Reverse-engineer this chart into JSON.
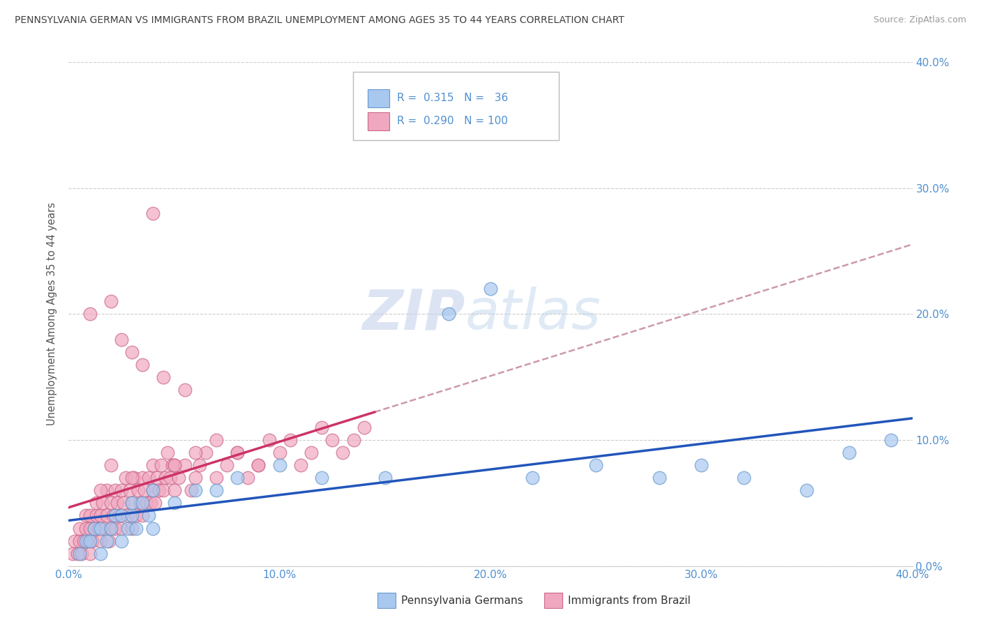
{
  "title": "PENNSYLVANIA GERMAN VS IMMIGRANTS FROM BRAZIL UNEMPLOYMENT AMONG AGES 35 TO 44 YEARS CORRELATION CHART",
  "source": "Source: ZipAtlas.com",
  "ylabel": "Unemployment Among Ages 35 to 44 years",
  "watermark_zip": "ZIP",
  "watermark_atlas": "atlas",
  "xlim": [
    0.0,
    0.4
  ],
  "ylim": [
    0.0,
    0.4
  ],
  "xticks": [
    0.0,
    0.1,
    0.2,
    0.3,
    0.4
  ],
  "yticks": [
    0.0,
    0.1,
    0.2,
    0.3,
    0.4
  ],
  "series1_name": "Pennsylvania Germans",
  "series2_name": "Immigrants from Brazil",
  "series1_color": "#a8c8f0",
  "series1_edge": "#6699cc",
  "series2_color": "#f0a8c0",
  "series2_edge": "#cc6688",
  "trend1_color": "#2255bb",
  "trend2_color": "#cc3366",
  "trend_dash_color": "#cc99aa",
  "title_color": "#404040",
  "axis_tick_color": "#5090d0",
  "ylabel_color": "#555555",
  "background_color": "#ffffff",
  "grid_color": "#cccccc",
  "legend_text_color": "#5090d0",
  "pa_german_x": [
    0.005,
    0.008,
    0.01,
    0.012,
    0.015,
    0.015,
    0.018,
    0.02,
    0.022,
    0.025,
    0.025,
    0.028,
    0.03,
    0.03,
    0.032,
    0.035,
    0.038,
    0.04,
    0.04,
    0.05,
    0.06,
    0.07,
    0.08,
    0.1,
    0.12,
    0.15,
    0.18,
    0.2,
    0.22,
    0.25,
    0.28,
    0.3,
    0.32,
    0.35,
    0.37,
    0.39
  ],
  "pa_german_y": [
    0.01,
    0.02,
    0.02,
    0.03,
    0.01,
    0.03,
    0.02,
    0.03,
    0.04,
    0.02,
    0.04,
    0.03,
    0.04,
    0.05,
    0.03,
    0.05,
    0.04,
    0.03,
    0.06,
    0.05,
    0.06,
    0.06,
    0.07,
    0.08,
    0.07,
    0.07,
    0.2,
    0.22,
    0.07,
    0.08,
    0.07,
    0.08,
    0.07,
    0.06,
    0.09,
    0.1
  ],
  "brazil_x": [
    0.002,
    0.003,
    0.004,
    0.005,
    0.005,
    0.006,
    0.007,
    0.008,
    0.008,
    0.009,
    0.01,
    0.01,
    0.01,
    0.011,
    0.012,
    0.013,
    0.013,
    0.014,
    0.015,
    0.015,
    0.016,
    0.017,
    0.018,
    0.018,
    0.019,
    0.02,
    0.02,
    0.021,
    0.022,
    0.022,
    0.023,
    0.024,
    0.025,
    0.025,
    0.026,
    0.027,
    0.028,
    0.029,
    0.03,
    0.03,
    0.031,
    0.032,
    0.033,
    0.034,
    0.035,
    0.035,
    0.036,
    0.037,
    0.038,
    0.039,
    0.04,
    0.04,
    0.041,
    0.042,
    0.043,
    0.044,
    0.045,
    0.046,
    0.047,
    0.048,
    0.049,
    0.05,
    0.05,
    0.052,
    0.055,
    0.058,
    0.06,
    0.062,
    0.065,
    0.07,
    0.075,
    0.08,
    0.085,
    0.09,
    0.095,
    0.1,
    0.105,
    0.11,
    0.115,
    0.12,
    0.125,
    0.13,
    0.135,
    0.14,
    0.01,
    0.02,
    0.03,
    0.015,
    0.025,
    0.035,
    0.045,
    0.055,
    0.02,
    0.03,
    0.04,
    0.05,
    0.06,
    0.07,
    0.08,
    0.09
  ],
  "brazil_y": [
    0.01,
    0.02,
    0.01,
    0.02,
    0.03,
    0.01,
    0.02,
    0.03,
    0.04,
    0.02,
    0.01,
    0.03,
    0.04,
    0.02,
    0.03,
    0.04,
    0.05,
    0.03,
    0.02,
    0.04,
    0.05,
    0.03,
    0.04,
    0.06,
    0.02,
    0.03,
    0.05,
    0.04,
    0.06,
    0.03,
    0.05,
    0.04,
    0.06,
    0.03,
    0.05,
    0.07,
    0.04,
    0.06,
    0.03,
    0.05,
    0.07,
    0.04,
    0.06,
    0.05,
    0.07,
    0.04,
    0.06,
    0.05,
    0.07,
    0.05,
    0.06,
    0.08,
    0.05,
    0.07,
    0.06,
    0.08,
    0.06,
    0.07,
    0.09,
    0.07,
    0.08,
    0.06,
    0.08,
    0.07,
    0.08,
    0.06,
    0.07,
    0.08,
    0.09,
    0.07,
    0.08,
    0.09,
    0.07,
    0.08,
    0.1,
    0.09,
    0.1,
    0.08,
    0.09,
    0.11,
    0.1,
    0.09,
    0.1,
    0.11,
    0.2,
    0.08,
    0.17,
    0.06,
    0.18,
    0.16,
    0.15,
    0.14,
    0.21,
    0.07,
    0.28,
    0.08,
    0.09,
    0.1,
    0.09,
    0.08
  ]
}
